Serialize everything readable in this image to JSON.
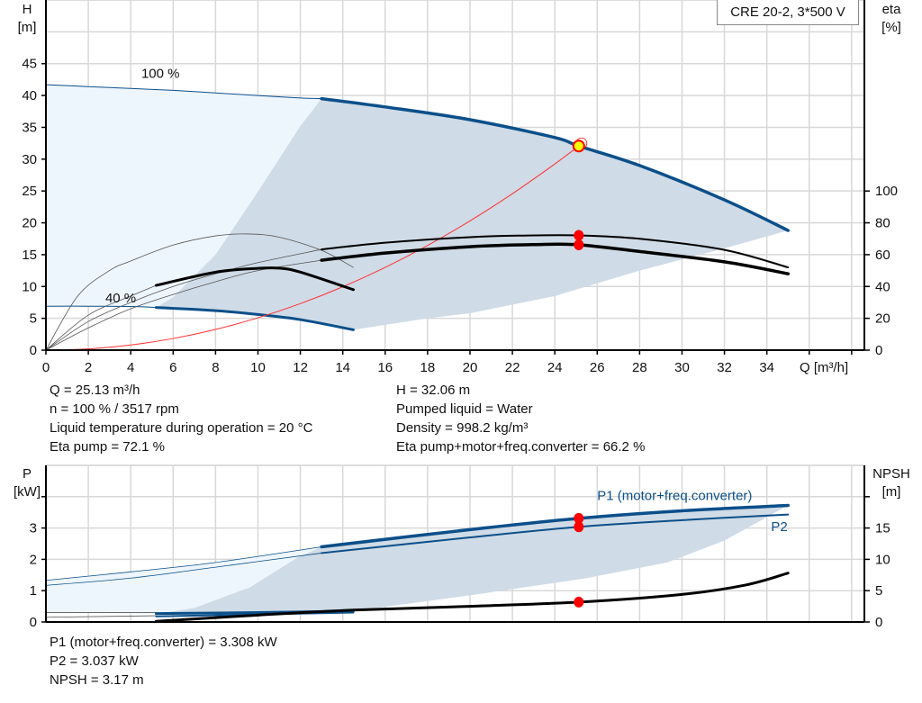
{
  "chart_data": [
    {
      "type": "line",
      "title": "CRE 20-2, 3*500 V",
      "xlabel": "Q [m³/h]",
      "ylabel_top": "H",
      "ylabel_unit": "[m]",
      "y2label_top": "eta",
      "y2label_unit": "[%]",
      "xlim": [
        0,
        38.6
      ],
      "ylim": [
        0,
        55
      ],
      "y2lim": [
        0,
        220
      ],
      "grid": true,
      "xticks": [
        0,
        2,
        4,
        6,
        8,
        10,
        12,
        14,
        16,
        18,
        20,
        22,
        24,
        26,
        28,
        30,
        32,
        34
      ],
      "xgrid": [
        0,
        2,
        4,
        6,
        8,
        10,
        12,
        14,
        16,
        18,
        20,
        22,
        24,
        26,
        28,
        30,
        32,
        34,
        36,
        38
      ],
      "yticks": [
        0,
        5,
        10,
        15,
        20,
        25,
        30,
        35,
        40,
        45
      ],
      "ygrid": [
        0,
        5,
        10,
        15,
        20,
        25,
        30,
        35,
        40,
        45,
        50
      ],
      "y2ticks": [
        0,
        20,
        40,
        60,
        80,
        100
      ],
      "annotations": [
        {
          "text": "100 %",
          "q": 4.5,
          "h": 42.8
        },
        {
          "text": "40 %",
          "q": 2.8,
          "h": 7.5
        }
      ],
      "regions": [
        {
          "name": "light-range",
          "color": "#eef6fd",
          "points": [
            [
              0,
              41.7
            ],
            [
              2,
              41.4
            ],
            [
              4,
              41.1
            ],
            [
              6,
              40.8
            ],
            [
              8,
              40.4
            ],
            [
              10,
              40.0
            ],
            [
              12,
              39.6
            ],
            [
              13,
              39.5
            ],
            [
              12,
              35.2
            ],
            [
              10,
              24.9
            ],
            [
              8,
              15
            ],
            [
              6,
              8.3
            ],
            [
              5.2,
              6.7
            ],
            [
              4,
              6.85
            ],
            [
              2,
              6.9
            ],
            [
              0,
              6.9
            ]
          ]
        },
        {
          "name": "operating-range",
          "color": "#cfdbe6",
          "points": [
            [
              13,
              39.5
            ],
            [
              16,
              38.2
            ],
            [
              20,
              36.2
            ],
            [
              24,
              33.4
            ],
            [
              25.13,
              32.06
            ],
            [
              28,
              29.0
            ],
            [
              32,
              23.6
            ],
            [
              35,
              18.8
            ],
            [
              32,
              16
            ],
            [
              28,
              12.5
            ],
            [
              24,
              8.5
            ],
            [
              20,
              5.8
            ],
            [
              18,
              5
            ],
            [
              14.5,
              3.2
            ],
            [
              12,
              4.8
            ],
            [
              10,
              5.6
            ],
            [
              8,
              6.2
            ],
            [
              5.2,
              6.7
            ],
            [
              6,
              8.3
            ],
            [
              8,
              15
            ],
            [
              10,
              24.9
            ],
            [
              12,
              35.2
            ],
            [
              13,
              39.5
            ]
          ]
        }
      ],
      "series": [
        {
          "axis": "y",
          "color": "#0b4f8a",
          "width": 1,
          "points": [
            [
              0,
              41.7
            ],
            [
              2,
              41.4
            ],
            [
              4,
              41.1
            ],
            [
              6,
              40.8
            ],
            [
              8,
              40.4
            ],
            [
              10,
              40.0
            ],
            [
              12,
              39.6
            ],
            [
              13,
              39.5
            ]
          ]
        },
        {
          "axis": "y",
          "color": "#0b4f8a",
          "width": 3.5,
          "points": [
            [
              13,
              39.5
            ],
            [
              16,
              38.2
            ],
            [
              20,
              36.2
            ],
            [
              24,
              33.4
            ],
            [
              25.13,
              32.06
            ],
            [
              28,
              29.0
            ],
            [
              32,
              23.6
            ],
            [
              35,
              18.8
            ]
          ]
        },
        {
          "axis": "y",
          "color": "#0b4f8a",
          "width": 1,
          "points": [
            [
              0,
              6.9
            ],
            [
              2,
              6.9
            ],
            [
              4,
              6.85
            ],
            [
              5.2,
              6.7
            ]
          ]
        },
        {
          "axis": "y",
          "color": "#0b4f8a",
          "width": 3,
          "points": [
            [
              5.2,
              6.7
            ],
            [
              8,
              6.2
            ],
            [
              10,
              5.6
            ],
            [
              12,
              4.8
            ],
            [
              14.5,
              3.2
            ]
          ]
        },
        {
          "axis": "y",
          "color": "#ff3030",
          "width": 1,
          "points": [
            [
              0,
              0
            ],
            [
              2,
              0.2
            ],
            [
              4,
              0.81
            ],
            [
              6,
              1.83
            ],
            [
              8,
              3.25
            ],
            [
              10,
              5.08
            ],
            [
              12,
              7.31
            ],
            [
              14,
              9.95
            ],
            [
              16,
              13.0
            ],
            [
              18,
              16.45
            ],
            [
              20,
              20.3
            ],
            [
              22,
              24.57
            ],
            [
              24,
              29.24
            ],
            [
              25.13,
              32.06
            ]
          ]
        },
        {
          "axis": "y2",
          "color": "#555",
          "width": 0.8,
          "points": [
            [
              0,
              0
            ],
            [
              1.5,
              34
            ],
            [
              3,
              50
            ],
            [
              4,
              56
            ],
            [
              6,
              66
            ],
            [
              8,
              71.8
            ],
            [
              9.5,
              73
            ],
            [
              11,
              71
            ],
            [
              13,
              62.7
            ],
            [
              14.5,
              52
            ]
          ]
        },
        {
          "axis": "y2",
          "color": "#555",
          "width": 0.8,
          "points": [
            [
              0,
              0
            ],
            [
              2,
              18
            ],
            [
              4,
              30
            ],
            [
              6,
              40
            ],
            [
              8,
              48
            ],
            [
              10,
              55
            ],
            [
              13,
              63.3
            ]
          ]
        },
        {
          "axis": "y2",
          "color": "#555",
          "width": 0.8,
          "points": [
            [
              0,
              0
            ],
            [
              2,
              14
            ],
            [
              4,
              26
            ],
            [
              6,
              35
            ],
            [
              8,
              43
            ],
            [
              10,
              50
            ],
            [
              13,
              56.5
            ]
          ]
        },
        {
          "axis": "y2",
          "color": "#555",
          "width": 0.8,
          "points": [
            [
              0,
              0
            ],
            [
              2,
              22
            ],
            [
              4,
              34
            ],
            [
              5.2,
              40.7
            ]
          ]
        },
        {
          "axis": "y2",
          "color": "#000",
          "width": 2,
          "points": [
            [
              13,
              63.3
            ],
            [
              16,
              67.5
            ],
            [
              20,
              71
            ],
            [
              22.5,
              72
            ],
            [
              25.13,
              72.1
            ],
            [
              28,
              70
            ],
            [
              32,
              63
            ],
            [
              35,
              52
            ]
          ]
        },
        {
          "axis": "y2",
          "color": "#000",
          "width": 3.5,
          "points": [
            [
              13,
              56.5
            ],
            [
              16,
              61
            ],
            [
              20,
              65
            ],
            [
              23,
              66.3
            ],
            [
              25.13,
              66.2
            ],
            [
              28,
              62
            ],
            [
              32,
              55.5
            ],
            [
              35,
              48
            ]
          ]
        },
        {
          "axis": "y2",
          "color": "#000",
          "width": 3,
          "points": [
            [
              5.2,
              40.7
            ],
            [
              8,
              49
            ],
            [
              10,
              51.4
            ],
            [
              11,
              51.5
            ],
            [
              12,
              49
            ],
            [
              14.5,
              38
            ]
          ]
        }
      ],
      "markers": [
        {
          "q": 25.13,
          "v": 72.1,
          "axis": "y2",
          "color": "#ff0000"
        },
        {
          "q": 25.13,
          "v": 66.2,
          "axis": "y2",
          "color": "#ff0000"
        }
      ],
      "operating_point": {
        "q": 25.13,
        "h": 32.06,
        "fill": "#ffff00",
        "stroke": "#ff0000"
      }
    },
    {
      "type": "line",
      "ylabel_top": "P",
      "ylabel_unit": "[kW]",
      "y2label_top": "NPSH",
      "y2label_unit": "[m]",
      "xlim": [
        0,
        38.6
      ],
      "ylim": [
        0,
        5
      ],
      "y2lim": [
        0,
        25
      ],
      "grid": true,
      "xgrid": [
        0,
        2,
        4,
        6,
        8,
        10,
        12,
        14,
        16,
        18,
        20,
        22,
        24,
        26,
        28,
        30,
        32,
        34,
        36,
        38
      ],
      "yticks": [
        0,
        1,
        2,
        3
      ],
      "ytick_marks": [
        0,
        1,
        2,
        3,
        4
      ],
      "ygrid": [
        0,
        1,
        2,
        3,
        4
      ],
      "y2ticks": [
        0,
        5,
        10,
        15
      ],
      "y2tick_marks": [
        0,
        5,
        10,
        15,
        20
      ],
      "series_labels": [
        {
          "text": "P1 (motor+freq.converter)",
          "q": 26,
          "p": 3.9,
          "color": "#0b4f8a"
        },
        {
          "text": "P2",
          "q": 34.2,
          "p": 2.9,
          "color": "#0b4f8a"
        }
      ],
      "regions": [
        {
          "name": "light-range",
          "color": "#eef6fd",
          "points": [
            [
              0,
              1.33
            ],
            [
              4,
              1.6
            ],
            [
              8,
              1.9
            ],
            [
              13,
              2.4
            ],
            [
              11.9,
              2.07
            ],
            [
              9.6,
              1.1
            ],
            [
              7,
              0.45
            ],
            [
              5.2,
              0.25
            ],
            [
              0,
              0.3
            ]
          ]
        },
        {
          "name": "operating-range",
          "color": "#cfdbe6",
          "points": [
            [
              13,
              2.4
            ],
            [
              20,
              2.95
            ],
            [
              25.13,
              3.308
            ],
            [
              30,
              3.55
            ],
            [
              35,
              3.72
            ],
            [
              32,
              2.6
            ],
            [
              29.3,
              1.9
            ],
            [
              25.5,
              1.4
            ],
            [
              20,
              0.85
            ],
            [
              14.5,
              0.35
            ],
            [
              10,
              0.3
            ],
            [
              5.2,
              0.25
            ],
            [
              7,
              0.45
            ],
            [
              9.6,
              1.1
            ],
            [
              11.9,
              2.07
            ],
            [
              13,
              2.4
            ]
          ]
        }
      ],
      "series": [
        {
          "axis": "y",
          "color": "#0b4f8a",
          "width": 0.8,
          "points": [
            [
              0,
              1.33
            ],
            [
              4,
              1.6
            ],
            [
              8,
              1.9
            ],
            [
              13,
              2.4
            ]
          ]
        },
        {
          "axis": "y",
          "color": "#0b4f8a",
          "width": 3.5,
          "points": [
            [
              13,
              2.4
            ],
            [
              20,
              2.95
            ],
            [
              25.13,
              3.308
            ],
            [
              30,
              3.55
            ],
            [
              35,
              3.72
            ]
          ]
        },
        {
          "axis": "y",
          "color": "#0b4f8a",
          "width": 0.8,
          "points": [
            [
              0,
              1.17
            ],
            [
              4,
              1.4
            ],
            [
              8,
              1.75
            ],
            [
              13,
              2.2
            ]
          ]
        },
        {
          "axis": "y",
          "color": "#0b4f8a",
          "width": 2,
          "points": [
            [
              13,
              2.2
            ],
            [
              20,
              2.7
            ],
            [
              25.13,
              3.037
            ],
            [
              30,
              3.25
            ],
            [
              35,
              3.43
            ]
          ]
        },
        {
          "axis": "y",
          "color": "#555",
          "width": 0.8,
          "points": [
            [
              0,
              0.3
            ],
            [
              5.2,
              0.3
            ]
          ]
        },
        {
          "axis": "y",
          "color": "#555",
          "width": 0.8,
          "points": [
            [
              0,
              0.15
            ],
            [
              5.2,
              0.2
            ]
          ]
        },
        {
          "axis": "y",
          "color": "#0b4f8a",
          "width": 3,
          "points": [
            [
              5.2,
              0.27
            ],
            [
              10,
              0.3
            ],
            [
              14.5,
              0.35
            ]
          ]
        },
        {
          "axis": "y",
          "color": "#0b4f8a",
          "width": 2,
          "points": [
            [
              5.2,
              0.18
            ],
            [
              10,
              0.24
            ],
            [
              14.5,
              0.3
            ]
          ]
        },
        {
          "axis": "y2",
          "color": "#000",
          "width": 3,
          "points": [
            [
              5.2,
              0.1
            ],
            [
              10,
              1.1
            ],
            [
              14.5,
              1.9
            ],
            [
              20,
              2.5
            ],
            [
              25.13,
              3.17
            ],
            [
              30,
              4.4
            ],
            [
              33,
              5.9
            ],
            [
              35,
              7.8
            ]
          ]
        }
      ],
      "markers": [
        {
          "q": 25.13,
          "v": 3.308,
          "axis": "y",
          "color": "#ff0000"
        },
        {
          "q": 25.13,
          "v": 3.037,
          "axis": "y",
          "color": "#ff0000"
        },
        {
          "q": 25.13,
          "v": 3.17,
          "axis": "y2",
          "color": "#ff0000"
        }
      ]
    }
  ],
  "info_top_left": [
    "Q = 25.13 m³/h",
    "n = 100 % / 3517 rpm",
    "Liquid temperature during operation = 20 °C",
    "Eta pump = 72.1 %"
  ],
  "info_top_right": [
    "H = 32.06 m",
    "Pumped liquid = Water",
    "Density = 998.2 kg/m³",
    "Eta pump+motor+freq.converter = 66.2 %"
  ],
  "info_bottom": [
    "P1 (motor+freq.converter) = 3.308 kW",
    "P2 = 3.037 kW",
    "NPSH = 3.17 m"
  ]
}
